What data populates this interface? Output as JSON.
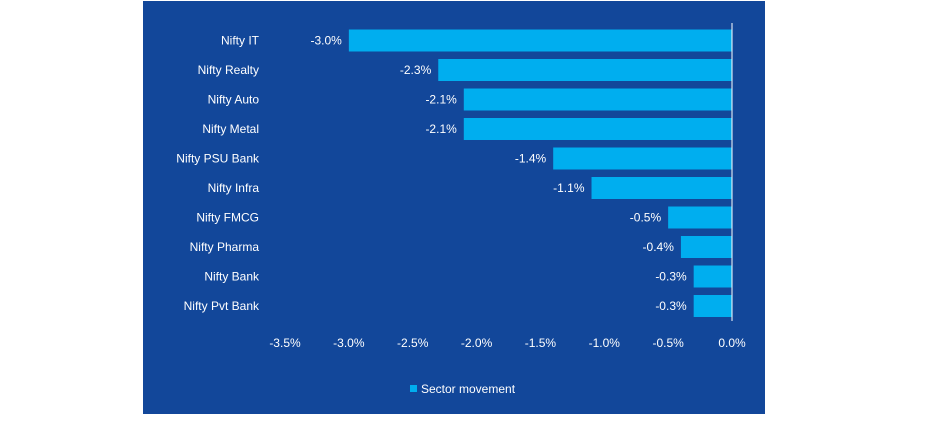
{
  "chart_data": {
    "type": "bar",
    "orientation": "horizontal",
    "categories": [
      "Nifty IT",
      "Nifty Realty",
      "Nifty Auto",
      "Nifty Metal",
      "Nifty PSU Bank",
      "Nifty Infra",
      "Nifty FMCG",
      "Nifty Pharma",
      "Nifty Bank",
      "Nifty Pvt Bank"
    ],
    "values": [
      -3.0,
      -2.3,
      -2.1,
      -2.1,
      -1.4,
      -1.1,
      -0.5,
      -0.4,
      -0.3,
      -0.3
    ],
    "value_labels": [
      "-3.0%",
      "-2.3%",
      "-2.1%",
      "-2.1%",
      "-1.4%",
      "-1.1%",
      "-0.5%",
      "-0.4%",
      "-0.3%",
      "-0.3%"
    ],
    "series": [
      {
        "name": "Sector movement"
      }
    ],
    "xlim": [
      -3.5,
      0.0
    ],
    "xticks": [
      -3.5,
      -3.0,
      -2.5,
      -2.0,
      -1.5,
      -1.0,
      -0.5,
      0.0
    ],
    "xtick_labels": [
      "-3.5%",
      "-3.0%",
      "-2.5%",
      "-2.0%",
      "-1.5%",
      "-1.0%",
      "-0.5%",
      "0.0%"
    ],
    "grid": false,
    "legend_position": "bottom-center",
    "colors": {
      "background": "#12479A",
      "bar": "#00AEEF",
      "text": "#FFFFFF",
      "axis": "#FFFFFF"
    }
  }
}
